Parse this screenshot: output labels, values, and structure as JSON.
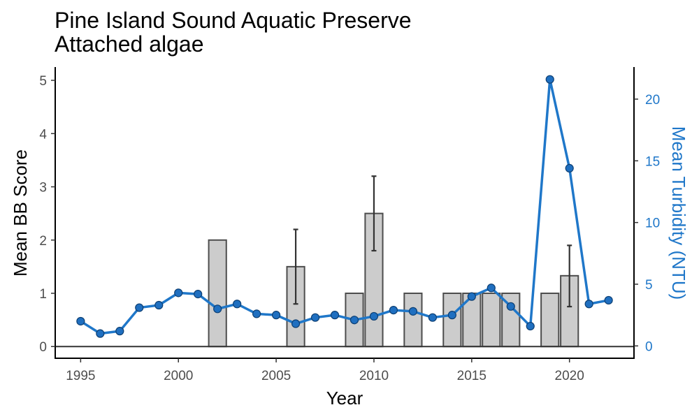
{
  "chart_data": {
    "type": "bar",
    "title": "Pine Island Sound Aquatic Preserve",
    "subtitle": "Attached algae",
    "xlabel": "Year",
    "ylabel": "Mean BB Score",
    "y2label": "Mean Turbidity (NTU)",
    "xlim": [
      1993.7,
      2023.3
    ],
    "ylim": [
      -0.22,
      5.25
    ],
    "y2lim": [
      -1.0,
      22.6
    ],
    "x_ticks": [
      1995,
      2000,
      2005,
      2010,
      2015,
      2020
    ],
    "y_ticks": [
      0,
      1,
      2,
      3,
      4,
      5
    ],
    "y2_ticks": [
      0,
      5,
      10,
      15,
      20
    ],
    "grid": false,
    "legend": "none",
    "colors": {
      "bar_fill": "#cccccc",
      "bar_stroke": "#4d4d4d",
      "error_bar": "#333333",
      "line": "#1f77c9",
      "point_fill": "#1f6fc0",
      "point_stroke": "#0d3f73",
      "right_axis_text": "#1f77c9"
    },
    "series": [
      {
        "name": "",
        "kind": "bar",
        "axis": "left",
        "points": [
          {
            "x": 2002,
            "y": 2.0
          },
          {
            "x": 2006,
            "y": 1.5,
            "err_low": 0.8,
            "err_high": 2.2
          },
          {
            "x": 2009,
            "y": 1.0
          },
          {
            "x": 2010,
            "y": 2.5,
            "err_low": 1.8,
            "err_high": 3.2
          },
          {
            "x": 2012,
            "y": 1.0
          },
          {
            "x": 2014,
            "y": 1.0
          },
          {
            "x": 2015,
            "y": 1.0
          },
          {
            "x": 2016,
            "y": 1.0
          },
          {
            "x": 2017,
            "y": 1.0
          },
          {
            "x": 2019,
            "y": 1.0
          },
          {
            "x": 2020,
            "y": 1.33,
            "err_low": 0.75,
            "err_high": 1.9
          }
        ]
      },
      {
        "name": "",
        "kind": "line",
        "axis": "right",
        "points": [
          {
            "x": 1995,
            "y": 2.0
          },
          {
            "x": 1996,
            "y": 1.0
          },
          {
            "x": 1997,
            "y": 1.2
          },
          {
            "x": 1998,
            "y": 3.1
          },
          {
            "x": 1999,
            "y": 3.3
          },
          {
            "x": 2000,
            "y": 4.3
          },
          {
            "x": 2001,
            "y": 4.2
          },
          {
            "x": 2002,
            "y": 3.0
          },
          {
            "x": 2003,
            "y": 3.4
          },
          {
            "x": 2004,
            "y": 2.6
          },
          {
            "x": 2005,
            "y": 2.5
          },
          {
            "x": 2006,
            "y": 1.8
          },
          {
            "x": 2007,
            "y": 2.3
          },
          {
            "x": 2008,
            "y": 2.5
          },
          {
            "x": 2009,
            "y": 2.1
          },
          {
            "x": 2010,
            "y": 2.4
          },
          {
            "x": 2011,
            "y": 2.9
          },
          {
            "x": 2012,
            "y": 2.8
          },
          {
            "x": 2013,
            "y": 2.3
          },
          {
            "x": 2014,
            "y": 2.5
          },
          {
            "x": 2015,
            "y": 4.0
          },
          {
            "x": 2016,
            "y": 4.7
          },
          {
            "x": 2017,
            "y": 3.2
          },
          {
            "x": 2018,
            "y": 1.6
          },
          {
            "x": 2019,
            "y": 21.6
          },
          {
            "x": 2020,
            "y": 14.4
          },
          {
            "x": 2021,
            "y": 3.4
          },
          {
            "x": 2022,
            "y": 3.7
          }
        ]
      }
    ]
  }
}
